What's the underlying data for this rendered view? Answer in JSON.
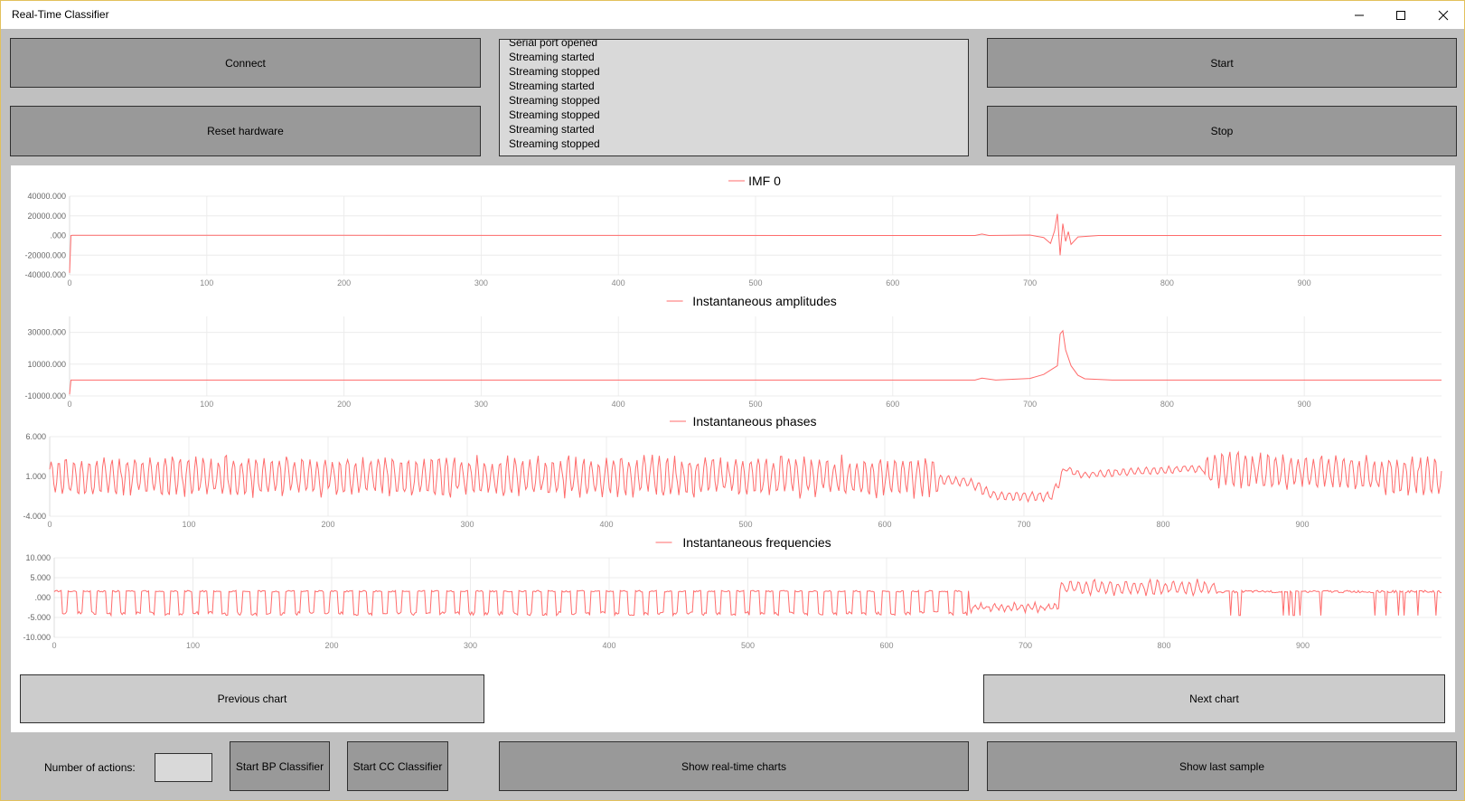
{
  "window": {
    "title": "Real-Time Classifier"
  },
  "buttons": {
    "connect": "Connect",
    "reset_hardware": "Reset hardware",
    "start": "Start",
    "stop": "Stop",
    "previous_chart": "Previous chart",
    "next_chart": "Next chart",
    "start_bp": "Start BP Classifier",
    "start_cc": "Start CC Classifier",
    "show_realtime": "Show real-time charts",
    "show_last_sample": "Show last sample"
  },
  "log": {
    "lines": [
      "Serial port opened",
      "Streaming started",
      "Streaming stopped",
      "Streaming started",
      "Streaming stopped",
      "Streaming stopped",
      "Streaming started",
      "Streaming stopped"
    ]
  },
  "actions": {
    "label": "Number of actions:",
    "value": ""
  },
  "icons": {
    "minimize": "minimize-icon",
    "maximize": "maximize-icon",
    "close": "close-icon"
  },
  "colors": {
    "series": "#ff6b6b",
    "grid": "#ececec",
    "button": "#999999",
    "button_light": "#cccccc",
    "background": "#c0c0c0"
  },
  "chart_data": [
    {
      "type": "line",
      "title": "IMF 0",
      "legend": "top-center",
      "xlim": [
        0,
        1000
      ],
      "ylim": [
        -40000,
        40000
      ],
      "yticks": [
        "40000.000",
        "20000.000",
        ".000",
        "-20000.000",
        "-40000.000"
      ],
      "xticks": [
        "0",
        "100",
        "200",
        "300",
        "400",
        "500",
        "600",
        "700",
        "800",
        "900"
      ],
      "series": [
        {
          "name": "IMF 0",
          "x": [
            0,
            1,
            2,
            660,
            665,
            670,
            700,
            710,
            715,
            718,
            720,
            722,
            724,
            726,
            728,
            730,
            735,
            750,
            1000
          ],
          "y": [
            -38000,
            0,
            300,
            0,
            1500,
            0,
            500,
            -2000,
            -8000,
            5000,
            22000,
            -20000,
            12000,
            -6000,
            4000,
            -9000,
            -1500,
            0,
            0
          ]
        }
      ]
    },
    {
      "type": "line",
      "title": "Instantaneous amplitudes",
      "legend": "top-center",
      "xlim": [
        0,
        1000
      ],
      "ylim": [
        -10000,
        40000
      ],
      "yticks": [
        "30000.000",
        "10000.000",
        "-10000.000"
      ],
      "xticks": [
        "0",
        "100",
        "200",
        "300",
        "400",
        "500",
        "600",
        "700",
        "800",
        "900"
      ],
      "series": [
        {
          "name": "Instantaneous amplitudes",
          "x": [
            0,
            1,
            2,
            660,
            665,
            675,
            700,
            710,
            720,
            722,
            724,
            726,
            730,
            735,
            740,
            760,
            1000
          ],
          "y": [
            -9000,
            0,
            0,
            0,
            1200,
            0,
            1000,
            3500,
            9000,
            29000,
            31000,
            19000,
            9000,
            3000,
            800,
            0,
            0
          ]
        }
      ]
    },
    {
      "type": "line",
      "title": "Instantaneous phases",
      "legend": "top-center",
      "xlim": [
        0,
        1000
      ],
      "ylim": [
        -4,
        6
      ],
      "yticks": [
        "6.000",
        "1.000",
        "-4.000"
      ],
      "xticks": [
        "0",
        "100",
        "200",
        "300",
        "400",
        "500",
        "600",
        "700",
        "800",
        "900"
      ],
      "series": [
        {
          "name": "Instantaneous phases",
          "x": [
            0,
            620,
            660,
            680,
            720,
            730,
            740,
            820,
            1000
          ],
          "y": [
            1,
            1,
            0.3,
            -1.5,
            -1.5,
            2,
            1.2,
            2,
            1
          ]
        }
      ]
    },
    {
      "type": "line",
      "title": "Instantaneous frequencies",
      "legend": "top-center",
      "xlim": [
        0,
        1000
      ],
      "ylim": [
        -10,
        10
      ],
      "yticks": [
        "10.000",
        "5.000",
        ".000",
        "-5.000",
        "-10.000"
      ],
      "xticks": [
        "0",
        "100",
        "200",
        "300",
        "400",
        "500",
        "600",
        "700",
        "800",
        "900"
      ],
      "series": [
        {
          "name": "Instantaneous frequencies",
          "x": [
            0,
            620,
            670,
            720,
            740,
            820,
            1000
          ],
          "y": [
            0,
            0,
            -3,
            -3,
            3,
            3,
            1
          ]
        }
      ]
    }
  ]
}
